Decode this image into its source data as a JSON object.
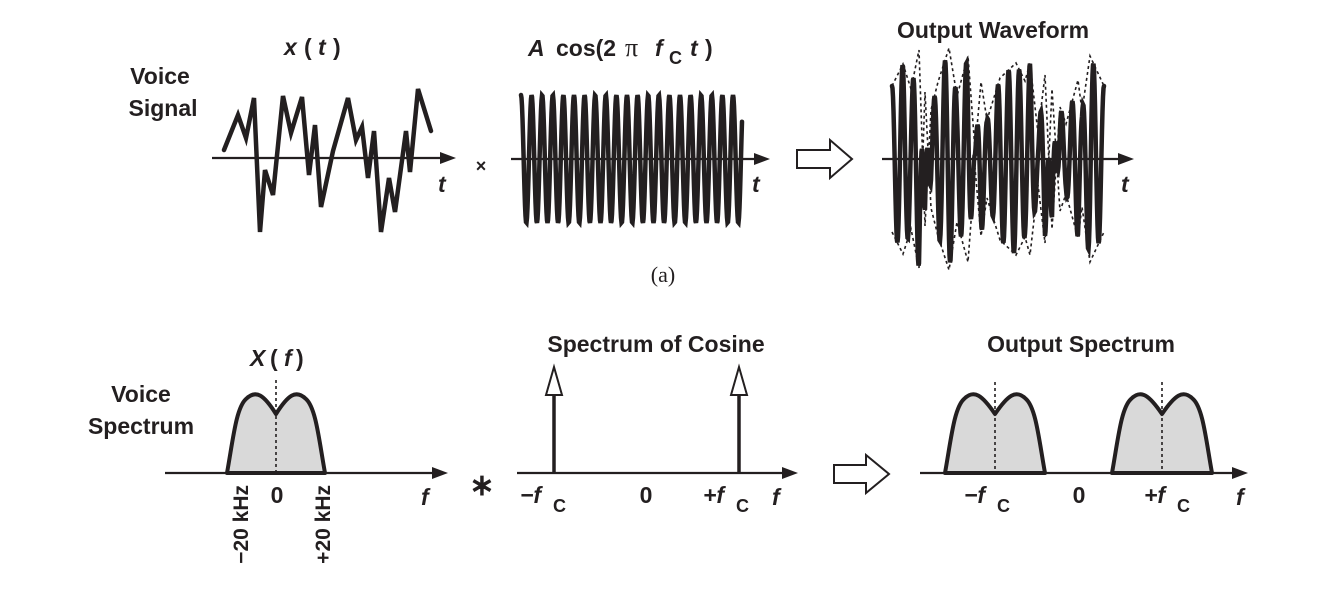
{
  "top": {
    "voice_label_line1": "Voice",
    "voice_label_line2": "Signal",
    "x_label": "x",
    "x_paren_open": "(",
    "x_var": "t",
    "x_paren_close": ")",
    "t_axis": "t",
    "multiply": "×",
    "carrier_A": "A",
    "carrier_cos": "cos(2",
    "carrier_pi": "π",
    "carrier_f": "f",
    "carrier_sub": "C",
    "carrier_t": "t",
    "carrier_close": ")",
    "output_title": "Output Waveform",
    "caption": "(a)"
  },
  "bottom": {
    "voice_label_line1": "Voice",
    "voice_label_line2": "Spectrum",
    "X_label": "X",
    "X_paren_open": "(",
    "X_var": "f",
    "X_paren_close": ")",
    "f_axis": "f",
    "tick_neg": "−20 kHz",
    "tick_zero": "0",
    "tick_pos": "+20 kHz",
    "convolve": "∗",
    "cosine_title": "Spectrum of Cosine",
    "neg_fc_prefix": "−f",
    "pos_fc_prefix": "+f",
    "fc_sub": "C",
    "output_title": "Output Spectrum"
  },
  "colors": {
    "ink": "#231f20",
    "fill_gray": "#d9d9d9",
    "background": "#ffffff"
  }
}
